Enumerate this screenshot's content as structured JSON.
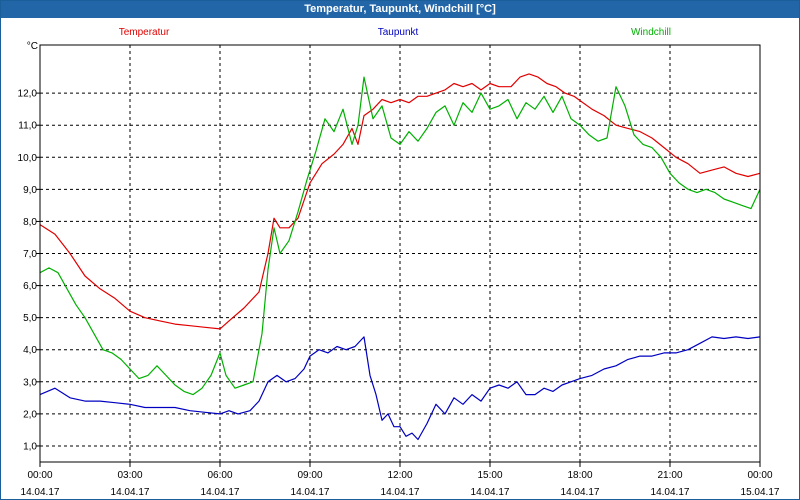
{
  "window": {
    "title": "Temperatur, Taupunkt, Windchill [°C]"
  },
  "chart_data": {
    "type": "line",
    "unit": "°C",
    "title": "",
    "xlabel": "",
    "ylabel": "°C",
    "xlim": [
      0,
      24
    ],
    "ylim": [
      0.5,
      13.5
    ],
    "grid": true,
    "legend": "top",
    "y_ticks": [
      "1,0",
      "2,0",
      "3,0",
      "4,0",
      "5,0",
      "6,0",
      "7,0",
      "8,0",
      "9,0",
      "10,0",
      "11,0",
      "12,0"
    ],
    "x_ticks": [
      {
        "x": 0,
        "time": "00:00",
        "date": "14.04.17"
      },
      {
        "x": 3,
        "time": "03:00",
        "date": "14.04.17"
      },
      {
        "x": 6,
        "time": "06:00",
        "date": "14.04.17"
      },
      {
        "x": 9,
        "time": "09:00",
        "date": "14.04.17"
      },
      {
        "x": 12,
        "time": "12:00",
        "date": "14.04.17"
      },
      {
        "x": 15,
        "time": "15:00",
        "date": "14.04.17"
      },
      {
        "x": 18,
        "time": "18:00",
        "date": "14.04.17"
      },
      {
        "x": 21,
        "time": "21:00",
        "date": "14.04.17"
      },
      {
        "x": 24,
        "time": "00:00",
        "date": "15.04.17"
      }
    ],
    "series": [
      {
        "name": "Temperatur",
        "color": "#e00000",
        "points": [
          [
            0,
            7.9
          ],
          [
            0.5,
            7.6
          ],
          [
            1,
            7.0
          ],
          [
            1.5,
            6.3
          ],
          [
            2,
            5.9
          ],
          [
            2.5,
            5.6
          ],
          [
            3,
            5.2
          ],
          [
            3.5,
            5.0
          ],
          [
            4,
            4.9
          ],
          [
            4.5,
            4.8
          ],
          [
            5,
            4.75
          ],
          [
            5.5,
            4.7
          ],
          [
            6,
            4.65
          ],
          [
            6.3,
            4.9
          ],
          [
            6.8,
            5.3
          ],
          [
            7.3,
            5.8
          ],
          [
            7.6,
            7.0
          ],
          [
            7.8,
            8.1
          ],
          [
            8,
            7.8
          ],
          [
            8.3,
            7.8
          ],
          [
            8.6,
            8.1
          ],
          [
            9,
            9.2
          ],
          [
            9.4,
            9.8
          ],
          [
            9.8,
            10.1
          ],
          [
            10.1,
            10.4
          ],
          [
            10.4,
            10.9
          ],
          [
            10.6,
            10.4
          ],
          [
            10.8,
            11.3
          ],
          [
            11.1,
            11.5
          ],
          [
            11.4,
            11.8
          ],
          [
            11.7,
            11.7
          ],
          [
            12,
            11.8
          ],
          [
            12.3,
            11.7
          ],
          [
            12.6,
            11.9
          ],
          [
            12.9,
            11.9
          ],
          [
            13.2,
            12.0
          ],
          [
            13.5,
            12.1
          ],
          [
            13.8,
            12.3
          ],
          [
            14.1,
            12.2
          ],
          [
            14.4,
            12.3
          ],
          [
            14.7,
            12.1
          ],
          [
            15,
            12.3
          ],
          [
            15.3,
            12.2
          ],
          [
            15.7,
            12.2
          ],
          [
            16,
            12.5
          ],
          [
            16.3,
            12.6
          ],
          [
            16.6,
            12.5
          ],
          [
            16.9,
            12.3
          ],
          [
            17.2,
            12.2
          ],
          [
            17.5,
            12.0
          ],
          [
            17.8,
            11.9
          ],
          [
            18.1,
            11.7
          ],
          [
            18.4,
            11.5
          ],
          [
            18.8,
            11.3
          ],
          [
            19.2,
            11.0
          ],
          [
            19.6,
            10.9
          ],
          [
            20,
            10.8
          ],
          [
            20.4,
            10.6
          ],
          [
            20.8,
            10.3
          ],
          [
            21.2,
            10.0
          ],
          [
            21.6,
            9.8
          ],
          [
            22,
            9.5
          ],
          [
            22.4,
            9.6
          ],
          [
            22.8,
            9.7
          ],
          [
            23.2,
            9.5
          ],
          [
            23.6,
            9.4
          ],
          [
            24,
            9.5
          ]
        ]
      },
      {
        "name": "Taupunkt",
        "color": "#0000c0",
        "points": [
          [
            0,
            2.6
          ],
          [
            0.5,
            2.8
          ],
          [
            1,
            2.5
          ],
          [
            1.5,
            2.4
          ],
          [
            2,
            2.4
          ],
          [
            2.5,
            2.35
          ],
          [
            3,
            2.3
          ],
          [
            3.5,
            2.2
          ],
          [
            4,
            2.2
          ],
          [
            4.5,
            2.2
          ],
          [
            5,
            2.1
          ],
          [
            5.5,
            2.05
          ],
          [
            6,
            2.0
          ],
          [
            6.3,
            2.1
          ],
          [
            6.6,
            2.0
          ],
          [
            7,
            2.1
          ],
          [
            7.3,
            2.4
          ],
          [
            7.6,
            3.0
          ],
          [
            7.9,
            3.2
          ],
          [
            8.2,
            3.0
          ],
          [
            8.5,
            3.1
          ],
          [
            8.8,
            3.4
          ],
          [
            9,
            3.8
          ],
          [
            9.3,
            4.0
          ],
          [
            9.6,
            3.9
          ],
          [
            9.9,
            4.1
          ],
          [
            10.2,
            4.0
          ],
          [
            10.5,
            4.1
          ],
          [
            10.8,
            4.4
          ],
          [
            11,
            3.2
          ],
          [
            11.2,
            2.6
          ],
          [
            11.4,
            1.8
          ],
          [
            11.6,
            2.0
          ],
          [
            11.8,
            1.6
          ],
          [
            12,
            1.6
          ],
          [
            12.2,
            1.3
          ],
          [
            12.4,
            1.4
          ],
          [
            12.6,
            1.2
          ],
          [
            12.9,
            1.7
          ],
          [
            13.2,
            2.3
          ],
          [
            13.5,
            2.0
          ],
          [
            13.8,
            2.5
          ],
          [
            14.1,
            2.3
          ],
          [
            14.4,
            2.6
          ],
          [
            14.7,
            2.4
          ],
          [
            15,
            2.8
          ],
          [
            15.3,
            2.9
          ],
          [
            15.6,
            2.8
          ],
          [
            15.9,
            3.0
          ],
          [
            16.2,
            2.6
          ],
          [
            16.5,
            2.6
          ],
          [
            16.8,
            2.8
          ],
          [
            17.1,
            2.7
          ],
          [
            17.4,
            2.9
          ],
          [
            17.7,
            3.0
          ],
          [
            18,
            3.1
          ],
          [
            18.4,
            3.2
          ],
          [
            18.8,
            3.4
          ],
          [
            19.2,
            3.5
          ],
          [
            19.6,
            3.7
          ],
          [
            20,
            3.8
          ],
          [
            20.4,
            3.8
          ],
          [
            20.8,
            3.9
          ],
          [
            21.2,
            3.9
          ],
          [
            21.6,
            4.0
          ],
          [
            22,
            4.2
          ],
          [
            22.4,
            4.4
          ],
          [
            22.8,
            4.35
          ],
          [
            23.2,
            4.4
          ],
          [
            23.6,
            4.35
          ],
          [
            24,
            4.4
          ]
        ]
      },
      {
        "name": "Windchill",
        "color": "#00b000",
        "points": [
          [
            0,
            6.4
          ],
          [
            0.3,
            6.55
          ],
          [
            0.6,
            6.4
          ],
          [
            0.9,
            5.9
          ],
          [
            1.2,
            5.4
          ],
          [
            1.5,
            5.0
          ],
          [
            1.8,
            4.5
          ],
          [
            2.1,
            4.0
          ],
          [
            2.4,
            3.9
          ],
          [
            2.7,
            3.7
          ],
          [
            3,
            3.4
          ],
          [
            3.3,
            3.1
          ],
          [
            3.6,
            3.2
          ],
          [
            3.9,
            3.5
          ],
          [
            4.2,
            3.2
          ],
          [
            4.5,
            2.9
          ],
          [
            4.8,
            2.7
          ],
          [
            5.1,
            2.6
          ],
          [
            5.4,
            2.8
          ],
          [
            5.7,
            3.2
          ],
          [
            6,
            3.9
          ],
          [
            6.2,
            3.2
          ],
          [
            6.5,
            2.8
          ],
          [
            6.8,
            2.9
          ],
          [
            7.1,
            3.0
          ],
          [
            7.4,
            4.5
          ],
          [
            7.6,
            6.5
          ],
          [
            7.8,
            7.8
          ],
          [
            8,
            7.0
          ],
          [
            8.3,
            7.4
          ],
          [
            8.6,
            8.3
          ],
          [
            8.9,
            9.3
          ],
          [
            9.2,
            10.2
          ],
          [
            9.5,
            11.2
          ],
          [
            9.8,
            10.8
          ],
          [
            10.1,
            11.5
          ],
          [
            10.4,
            10.4
          ],
          [
            10.6,
            11.0
          ],
          [
            10.8,
            12.5
          ],
          [
            11.1,
            11.2
          ],
          [
            11.4,
            11.6
          ],
          [
            11.7,
            10.6
          ],
          [
            12,
            10.4
          ],
          [
            12.3,
            10.8
          ],
          [
            12.6,
            10.5
          ],
          [
            12.9,
            10.9
          ],
          [
            13.2,
            11.4
          ],
          [
            13.5,
            11.6
          ],
          [
            13.8,
            11.0
          ],
          [
            14.1,
            11.7
          ],
          [
            14.4,
            11.4
          ],
          [
            14.7,
            12.0
          ],
          [
            15,
            11.5
          ],
          [
            15.3,
            11.6
          ],
          [
            15.6,
            11.8
          ],
          [
            15.9,
            11.2
          ],
          [
            16.2,
            11.7
          ],
          [
            16.5,
            11.5
          ],
          [
            16.8,
            11.9
          ],
          [
            17.1,
            11.4
          ],
          [
            17.4,
            11.9
          ],
          [
            17.7,
            11.2
          ],
          [
            18,
            11.0
          ],
          [
            18.3,
            10.7
          ],
          [
            18.6,
            10.5
          ],
          [
            18.9,
            10.6
          ],
          [
            19.2,
            12.2
          ],
          [
            19.5,
            11.6
          ],
          [
            19.8,
            10.7
          ],
          [
            20.1,
            10.4
          ],
          [
            20.4,
            10.3
          ],
          [
            20.7,
            10.0
          ],
          [
            21,
            9.5
          ],
          [
            21.3,
            9.2
          ],
          [
            21.6,
            9.0
          ],
          [
            21.9,
            8.9
          ],
          [
            22.2,
            9.0
          ],
          [
            22.5,
            8.9
          ],
          [
            22.8,
            8.7
          ],
          [
            23.1,
            8.6
          ],
          [
            23.4,
            8.5
          ],
          [
            23.7,
            8.4
          ],
          [
            24,
            9.0
          ]
        ]
      }
    ]
  }
}
